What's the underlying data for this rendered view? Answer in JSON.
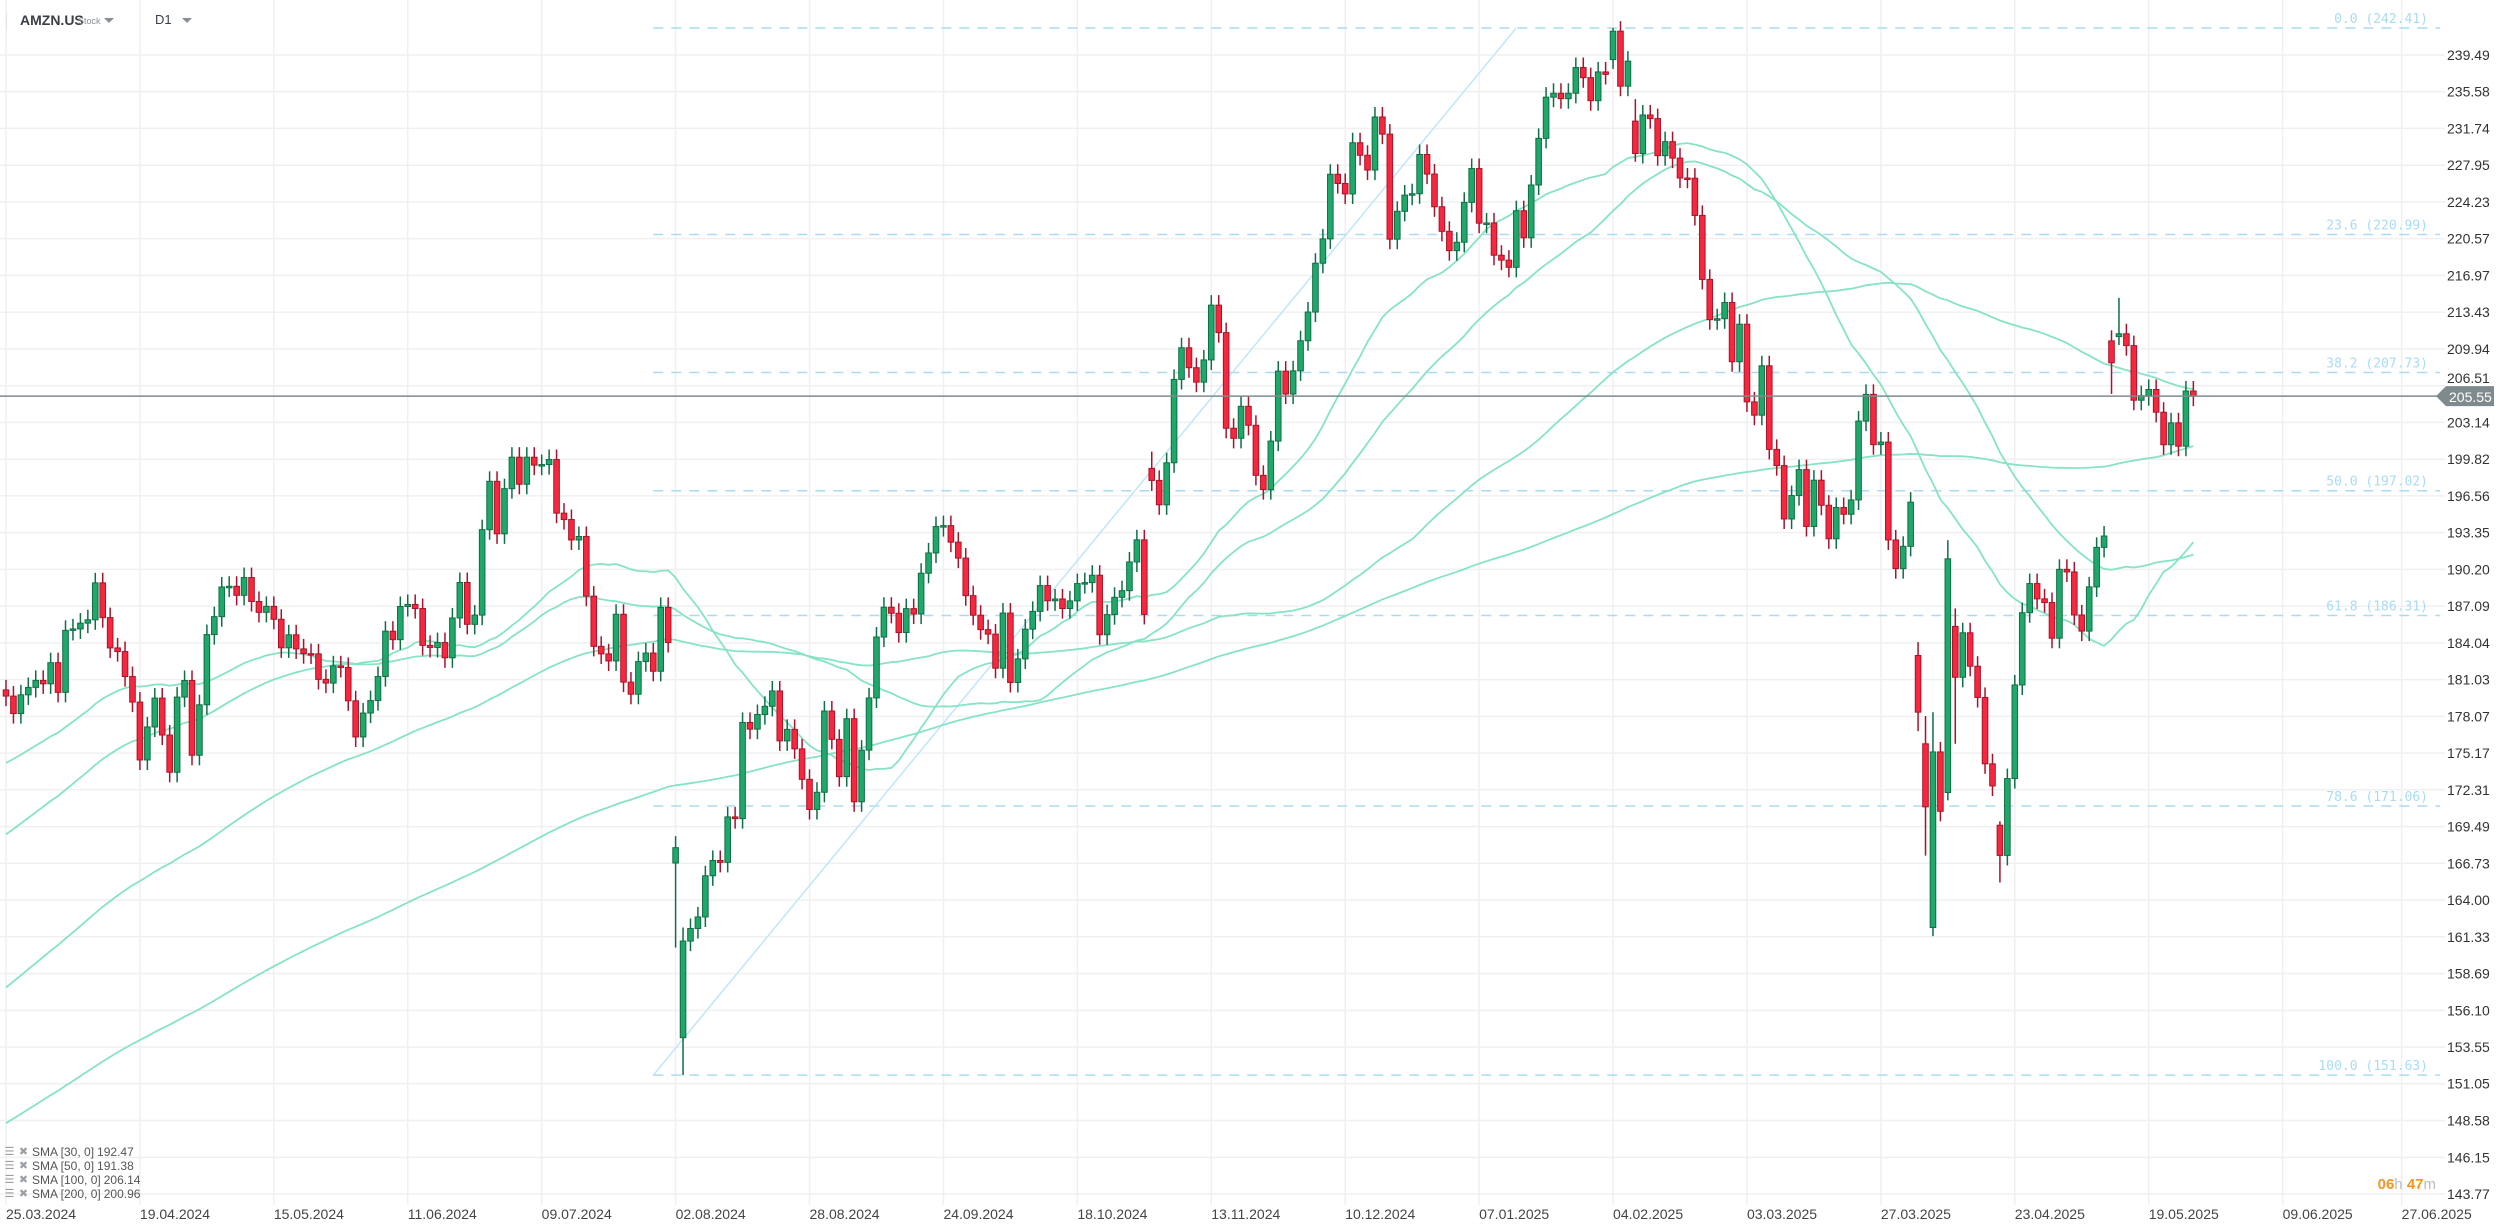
{
  "header": {
    "symbol": "AMZN.US",
    "type": "Stock",
    "timeframe": "D1"
  },
  "legend": [
    {
      "label": "SMA [30, 0]",
      "value": "192.47"
    },
    {
      "label": "SMA [50, 0]",
      "value": "191.38"
    },
    {
      "label": "SMA [100, 0]",
      "value": "206.14"
    },
    {
      "label": "SMA [200, 0]",
      "value": "200.96"
    }
  ],
  "countdown": {
    "hours": "06",
    "h": "h",
    "minutes": "47",
    "m": "m"
  },
  "colors": {
    "up": "#20a86b",
    "up_border": "#0f6e44",
    "down": "#f5283f",
    "down_border": "#a8132a",
    "sma": "#86e3c3",
    "fib": "#a9dcf3",
    "price_line": "#7f8a8e",
    "countdown": "#f7941d"
  },
  "chart_data": {
    "type": "candlestick",
    "title": "AMZN.US D1",
    "scale": "log",
    "current_price": "205.55",
    "y_ticks": [
      "239.49",
      "235.58",
      "231.74",
      "227.95",
      "224.23",
      "220.57",
      "216.97",
      "213.43",
      "209.94",
      "206.51",
      "203.14",
      "199.82",
      "196.56",
      "193.35",
      "190.20",
      "187.09",
      "184.04",
      "181.03",
      "178.07",
      "175.17",
      "172.31",
      "169.49",
      "166.73",
      "164.00",
      "161.33",
      "158.69",
      "156.10",
      "153.55",
      "151.05",
      "148.58",
      "146.15",
      "143.77"
    ],
    "x_ticks": [
      {
        "label": "25.03.2024",
        "index": 0
      },
      {
        "label": "19.04.2024",
        "index": 18
      },
      {
        "label": "15.05.2024",
        "index": 36
      },
      {
        "label": "11.06.2024",
        "index": 54
      },
      {
        "label": "09.07.2024",
        "index": 72
      },
      {
        "label": "02.08.2024",
        "index": 90
      },
      {
        "label": "28.08.2024",
        "index": 108
      },
      {
        "label": "24.09.2024",
        "index": 126
      },
      {
        "label": "18.10.2024",
        "index": 144
      },
      {
        "label": "13.11.2024",
        "index": 162
      },
      {
        "label": "10.12.2024",
        "index": 180
      },
      {
        "label": "07.01.2025",
        "index": 198
      },
      {
        "label": "04.02.2025",
        "index": 216
      },
      {
        "label": "03.03.2025",
        "index": 234
      },
      {
        "label": "27.03.2025",
        "index": 252
      },
      {
        "label": "23.04.2025",
        "index": 270
      },
      {
        "label": "19.05.2025",
        "index": 288
      },
      {
        "label": "09.06.2025",
        "index": 306
      },
      {
        "label": "27.06.2025",
        "index": 322
      }
    ],
    "candles": {
      "first_open": 180.2,
      "closes": [
        179.7,
        178.3,
        179.8,
        180.4,
        180.97,
        180.69,
        182.41,
        180.0,
        185.07,
        185.19,
        185.67,
        185.95,
        189.05,
        186.13,
        183.62,
        183.32,
        181.28,
        179.22,
        174.63,
        177.23,
        179.54,
        176.59,
        173.67,
        179.62,
        180.96,
        175.0,
        179.0,
        184.72,
        186.21,
        188.7,
        188.76,
        188.0,
        189.5,
        187.48,
        186.57,
        187.07,
        185.99,
        183.63,
        184.7,
        183.54,
        183.15,
        183.13,
        181.05,
        180.75,
        182.15,
        182.02,
        179.32,
        176.44,
        178.34,
        179.34,
        181.28,
        185.0,
        184.3,
        187.06,
        187.23,
        186.89,
        183.83,
        183.66,
        184.06,
        182.81,
        186.1,
        189.08,
        185.57,
        186.34,
        193.61,
        197.85,
        193.25,
        197.2,
        200.0,
        197.59,
        200.0,
        199.29,
        199.34,
        199.79,
        195.05,
        194.49,
        192.72,
        193.02,
        187.93,
        183.75,
        183.13,
        182.55,
        186.41,
        180.83,
        179.85,
        182.5,
        183.2,
        181.71,
        186.98,
        184.07,
        167.9,
        161.02,
        161.93,
        162.77,
        165.8,
        166.94,
        166.8,
        170.23,
        170.1,
        177.59,
        177.06,
        178.22,
        178.88,
        180.11,
        176.13,
        177.04,
        175.5,
        173.12,
        170.8,
        172.12,
        178.5,
        176.25,
        173.33,
        177.89,
        171.39,
        175.4,
        179.55,
        184.52,
        187.0,
        186.49,
        184.89,
        186.88,
        186.43,
        189.87,
        191.6,
        193.88,
        193.96,
        192.53,
        191.16,
        187.97,
        186.33,
        185.13,
        184.76,
        181.96,
        186.51,
        180.8,
        182.72,
        185.17,
        186.65,
        188.82,
        187.54,
        187.69,
        186.89,
        187.53,
        188.99,
        189.07,
        189.7,
        184.71,
        186.38,
        187.83,
        188.39,
        190.83,
        192.73,
        186.4,
        197.93,
        195.78,
        199.5,
        207.09,
        210.05,
        208.18,
        206.84,
        208.91,
        214.1,
        211.48,
        202.61,
        201.7,
        204.61,
        202.88,
        198.38,
        197.12,
        201.45,
        207.86,
        205.74,
        207.89,
        210.71,
        213.44,
        218.16,
        220.55,
        227.03,
        226.09,
        225.04,
        230.26,
        228.97,
        227.46,
        232.93,
        231.15,
        220.52,
        223.29,
        224.92,
        225.06,
        229.05,
        227.05,
        223.75,
        221.3,
        219.39,
        220.22,
        224.19,
        227.61,
        222.11,
        222.13,
        218.94,
        218.46,
        217.76,
        223.35,
        220.66,
        225.94,
        230.71,
        235.01,
        235.42,
        234.85,
        235.42,
        238.15,
        237.07,
        234.64,
        237.68,
        237.42,
        242.06,
        236.17,
        238.83,
        229.15,
        233.14,
        232.76,
        228.93,
        230.37,
        228.68,
        226.65,
        226.63,
        222.88,
        216.58,
        212.71,
        212.8,
        214.35,
        208.74,
        212.28,
        205.02,
        203.8,
        208.36,
        200.7,
        199.25,
        194.54,
        196.59,
        198.89,
        193.89,
        197.95,
        195.74,
        192.82,
        195.54,
        194.95,
        196.21,
        203.26,
        205.71,
        201.13,
        201.36,
        192.72,
        190.26,
        192.17,
        196.01,
        178.41,
        171.0,
        175.26,
        170.66,
        191.1,
        181.22,
        184.87,
        182.12,
        179.59,
        174.33,
        172.61,
        167.32,
        173.18,
        180.6,
        186.54,
        188.99,
        187.7,
        187.39,
        184.42,
        190.2,
        189.98,
        186.35,
        185.01,
        188.71,
        192.08,
        193.06,
        208.64,
        211.37,
        210.25,
        205.17,
        205.59,
        206.16,
        204.07,
        201.12,
        203.1,
        200.99,
        206.02,
        205.55
      ],
      "overrides": [
        {
          "i": 90,
          "o": 166.75,
          "h": 168.77,
          "l": 160.55
        },
        {
          "i": 91,
          "o": 154.2,
          "h": 162.0,
          "l": 151.63
        },
        {
          "i": 154,
          "o": 199.0,
          "h": 200.5,
          "l": 197.0
        },
        {
          "i": 216,
          "o": 239.0,
          "h": 242.41,
          "l": 238.0
        },
        {
          "i": 219,
          "o": 232.5,
          "h": 234.8,
          "l": 228.3
        },
        {
          "i": 257,
          "o": 183.0,
          "h": 184.1,
          "l": 176.9
        },
        {
          "i": 258,
          "o": 175.9,
          "h": 178.1,
          "l": 167.3
        },
        {
          "i": 259,
          "o": 162.0,
          "h": 178.4,
          "l": 161.38
        },
        {
          "i": 261,
          "o": 172.1,
          "h": 192.7,
          "l": 171.5
        },
        {
          "i": 262,
          "o": 185.4,
          "h": 186.9,
          "l": 175.9
        },
        {
          "i": 268,
          "o": 169.6,
          "h": 169.9,
          "l": 165.3
        },
        {
          "i": 283,
          "o": 210.7,
          "h": 211.7,
          "l": 205.75
        },
        {
          "i": 284,
          "o": 211.1,
          "h": 214.8,
          "l": 210.3
        }
      ]
    },
    "sma": [
      {
        "name": "SMA [30, 0]",
        "period": 30,
        "start_value": 174.4
      },
      {
        "name": "SMA [50, 0]",
        "period": 50,
        "start_value": 168.9
      },
      {
        "name": "SMA [100, 0]",
        "period": 100,
        "start_value": 157.7
      },
      {
        "name": "SMA [200, 0]",
        "period": 200,
        "start_value": 148.4
      }
    ],
    "fibonacci": {
      "start_index": 87,
      "end_index": 203,
      "low": 151.63,
      "high": 242.41,
      "levels": [
        {
          "label": "0.0 (242.41)",
          "price": 242.41
        },
        {
          "label": "23.6 (220.99)",
          "price": 220.99
        },
        {
          "label": "38.2 (207.73)",
          "price": 207.73
        },
        {
          "label": "50.0 (197.02)",
          "price": 197.02
        },
        {
          "label": "61.8 (186.31)",
          "price": 186.31
        },
        {
          "label": "78.6 (171.06)",
          "price": 171.06
        },
        {
          "label": "100.0 (151.63)",
          "price": 151.63
        }
      ]
    }
  }
}
